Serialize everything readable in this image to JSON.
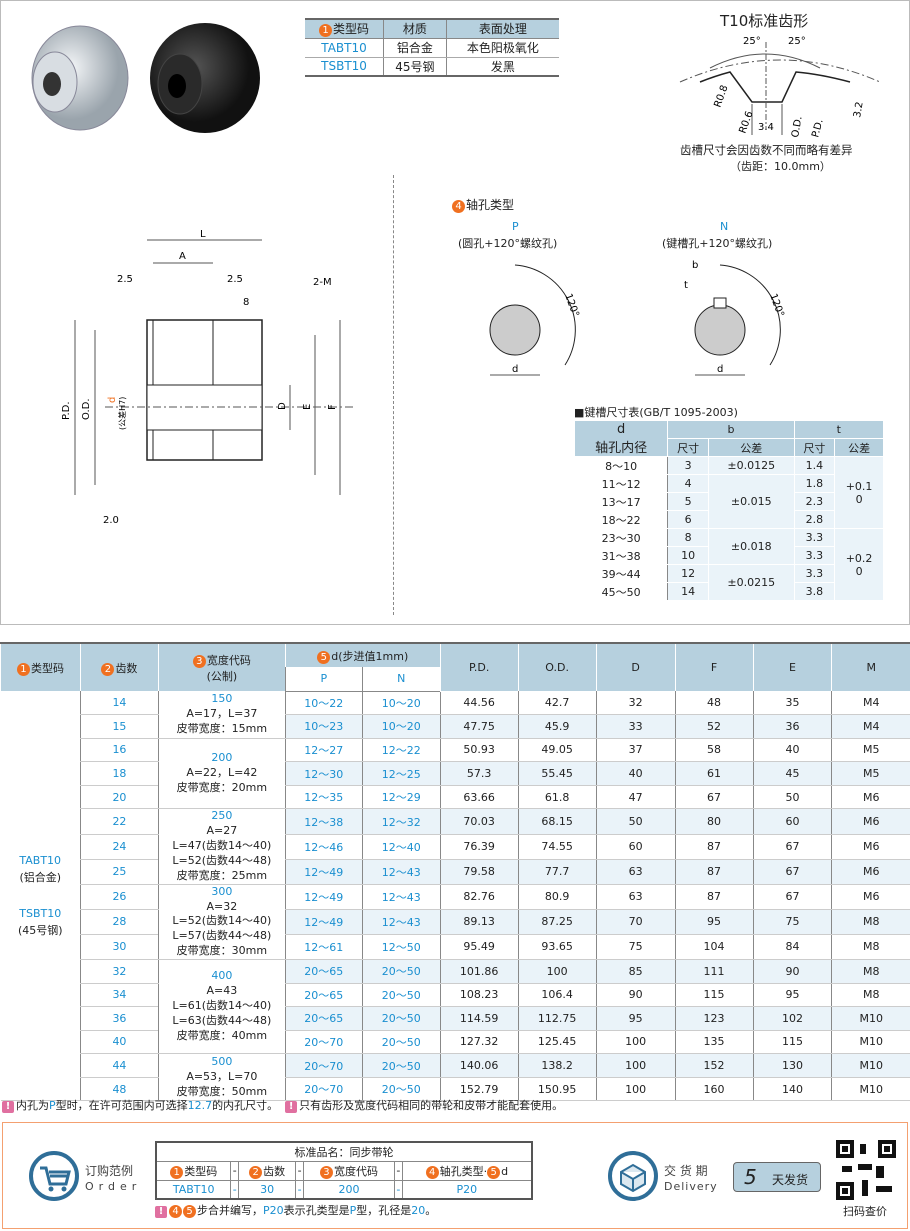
{
  "spec_table": {
    "headers": [
      "类型码",
      "材质",
      "表面处理"
    ],
    "rows": [
      [
        "TABT10",
        "铝合金",
        "本色阳极氧化"
      ],
      [
        "TSBT10",
        "45号钢",
        "发黑"
      ]
    ]
  },
  "tooth": {
    "title": "T10标准齿形",
    "angle_left": "25°",
    "angle_right": "25°",
    "r1": "R0.8",
    "r2": "R0.6",
    "width": "3.4",
    "od": "O.D.",
    "pd": "P.D.",
    "depth": "3.2",
    "note1": "齿槽尺寸会因齿数不同而略有差异",
    "note2": "（齿距：10.0mm）"
  },
  "drawing": {
    "L": "L",
    "A": "A",
    "d25a": "2.5",
    "d25b": "2.5",
    "d8": "8",
    "m": "2-M",
    "pd": "P.D.",
    "od": "O.D.",
    "d": "d",
    "d_tol": "(公差H7)",
    "D": "D",
    "E": "E",
    "F": "F",
    "d20": "2.0"
  },
  "bore": {
    "title": "轴孔类型",
    "p_code": "P",
    "p_desc": "(圆孔+120°螺纹孔)",
    "n_code": "N",
    "n_desc": "(键槽孔+120°螺纹孔)",
    "angle": "120°",
    "d": "d",
    "b": "b",
    "t": "t"
  },
  "keyway": {
    "title": "■键槽尺寸表(GB/T 1095-2003)",
    "h_d": "d",
    "h_d2": "轴孔内径",
    "h_b": "b",
    "h_t": "t",
    "h_size": "尺寸",
    "h_tol": "公差",
    "rows": [
      [
        "8～10",
        "3",
        "1.4"
      ],
      [
        "11～12",
        "4",
        "1.8"
      ],
      [
        "13～17",
        "5",
        "2.3"
      ],
      [
        "18～22",
        "6",
        "2.8"
      ],
      [
        "23～30",
        "8",
        "3.3"
      ],
      [
        "31～38",
        "10",
        "3.3"
      ],
      [
        "39～44",
        "12",
        "3.3"
      ],
      [
        "45～50",
        "14",
        "3.8"
      ]
    ],
    "b_tol": [
      "±0.0125",
      "±0.015",
      "±0.018",
      "±0.0215"
    ],
    "t_tol": [
      "+0.1\n0",
      "+0.2\n0"
    ]
  },
  "main": {
    "h_type": "类型码",
    "h_teeth": "齿数",
    "h_width": "宽度代码",
    "h_width2": "(公制)",
    "h_d": "d(步进值1mm)",
    "h_p": "P",
    "h_n": "N",
    "h_pd": "P.D.",
    "h_od": "O.D.",
    "h_D": "D",
    "h_F": "F",
    "h_E": "E",
    "h_M": "M",
    "type1": "TABT10",
    "type1b": "(铝合金)",
    "type2": "TSBT10",
    "type2b": "(45号钢)",
    "widths": [
      {
        "code": "150",
        "lines": [
          "A=17，L=37",
          "皮带宽度：15mm"
        ]
      },
      {
        "code": "200",
        "lines": [
          "A=22，L=42",
          "皮带宽度：20mm"
        ]
      },
      {
        "code": "250",
        "lines": [
          "A=27",
          "L=47(齿数14～40)",
          "L=52(齿数44～48)",
          "皮带宽度：25mm"
        ]
      },
      {
        "code": "300",
        "lines": [
          "A=32",
          "L=52(齿数14～40)",
          "L=57(齿数44～48)",
          "皮带宽度：30mm"
        ]
      },
      {
        "code": "400",
        "lines": [
          "A=43",
          "L=61(齿数14～40)",
          "L=63(齿数44～48)",
          "皮带宽度：40mm"
        ]
      },
      {
        "code": "500",
        "lines": [
          "A=53，L=70",
          "皮带宽度：50mm"
        ]
      }
    ],
    "rows": [
      [
        "14",
        "10～22",
        "10～20",
        "44.56",
        "42.7",
        "32",
        "48",
        "35",
        "M4"
      ],
      [
        "15",
        "10～23",
        "10～20",
        "47.75",
        "45.9",
        "33",
        "52",
        "36",
        "M4"
      ],
      [
        "16",
        "12～27",
        "12～22",
        "50.93",
        "49.05",
        "37",
        "58",
        "40",
        "M5"
      ],
      [
        "18",
        "12～30",
        "12～25",
        "57.3",
        "55.45",
        "40",
        "61",
        "45",
        "M5"
      ],
      [
        "20",
        "12～35",
        "12～29",
        "63.66",
        "61.8",
        "47",
        "67",
        "50",
        "M6"
      ],
      [
        "22",
        "12～38",
        "12～32",
        "70.03",
        "68.15",
        "50",
        "80",
        "60",
        "M6"
      ],
      [
        "24",
        "12～46",
        "12～40",
        "76.39",
        "74.55",
        "60",
        "87",
        "67",
        "M6"
      ],
      [
        "25",
        "12～49",
        "12～43",
        "79.58",
        "77.7",
        "63",
        "87",
        "67",
        "M6"
      ],
      [
        "26",
        "12～49",
        "12～43",
        "82.76",
        "80.9",
        "63",
        "87",
        "67",
        "M6"
      ],
      [
        "28",
        "12～49",
        "12～43",
        "89.13",
        "87.25",
        "70",
        "95",
        "75",
        "M8"
      ],
      [
        "30",
        "12～61",
        "12～50",
        "95.49",
        "93.65",
        "75",
        "104",
        "84",
        "M8"
      ],
      [
        "32",
        "20～65",
        "20～50",
        "101.86",
        "100",
        "85",
        "111",
        "90",
        "M8"
      ],
      [
        "34",
        "20～65",
        "20～50",
        "108.23",
        "106.4",
        "90",
        "115",
        "95",
        "M8"
      ],
      [
        "36",
        "20～65",
        "20～50",
        "114.59",
        "112.75",
        "95",
        "123",
        "102",
        "M10"
      ],
      [
        "40",
        "20～70",
        "20～50",
        "127.32",
        "125.45",
        "100",
        "135",
        "115",
        "M10"
      ],
      [
        "44",
        "20～70",
        "20～50",
        "140.06",
        "138.2",
        "100",
        "152",
        "130",
        "M10"
      ],
      [
        "48",
        "20～70",
        "20～50",
        "152.79",
        "150.95",
        "100",
        "160",
        "140",
        "M10"
      ]
    ]
  },
  "notes": {
    "n1a": "内孔为",
    "n1b": "P",
    "n1c": "型时，在许可范围内可选择",
    "n1d": "12.7",
    "n1e": "的内孔尺寸。",
    "n2": "只有齿形及宽度代码相同的带轮和皮带才能配套使用。"
  },
  "order": {
    "label_cn": "订购范例",
    "label_en": "Order",
    "title": "标准品名：同步带轮",
    "h": [
      "类型码",
      "齿数",
      "宽度代码",
      "轴孔类型·"
    ],
    "h_d": "d",
    "dash": "-",
    "v": [
      "TABT10",
      "30",
      "200",
      "P20"
    ],
    "note_a": "步合并编写，",
    "note_b": "P20",
    "note_c": "表示孔类型是",
    "note_d": "P",
    "note_e": "型，孔径是",
    "note_f": "20",
    "note_g": "。"
  },
  "delivery": {
    "label_cn": "交 货 期",
    "label_en": "Delivery",
    "days": "5",
    "text": "天发货",
    "qr": "扫码查价"
  },
  "colors": {
    "accent": "#1a8fd0",
    "header": "#b6d0de",
    "badge": "#f07020"
  }
}
